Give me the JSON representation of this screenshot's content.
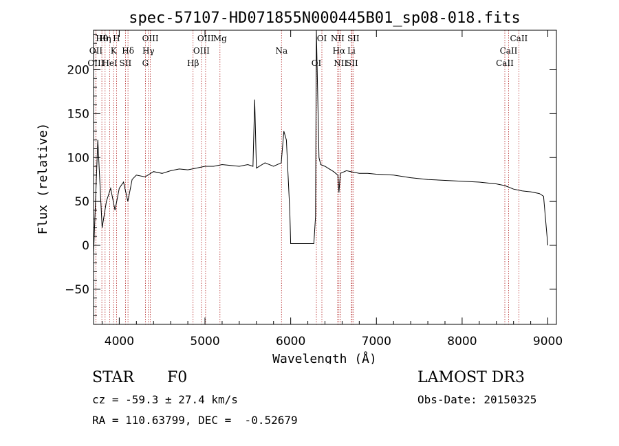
{
  "chart_data": {
    "type": "line",
    "title": "spec-57107-HD071855N000445B01_sp08-018.fits",
    "xlabel": "Wavelength (Å)",
    "ylabel": "Flux (relative)",
    "xlim": [
      3700,
      9100
    ],
    "ylim": [
      -90,
      245
    ],
    "xticks": [
      4000,
      5000,
      6000,
      7000,
      8000,
      9000
    ],
    "yticks": [
      -50,
      0,
      50,
      100,
      150,
      200
    ],
    "grid": false,
    "series": [
      {
        "name": "spectrum",
        "x": [
          3700,
          3750,
          3800,
          3850,
          3900,
          3950,
          4000,
          4050,
          4100,
          4150,
          4200,
          4300,
          4400,
          4500,
          4600,
          4700,
          4800,
          4900,
          5000,
          5100,
          5200,
          5300,
          5400,
          5500,
          5560,
          5580,
          5600,
          5700,
          5800,
          5890,
          5920,
          5950,
          5990,
          6000,
          6100,
          6200,
          6250,
          6270,
          6290,
          6300,
          6330,
          6350,
          6400,
          6500,
          6550,
          6563,
          6580,
          6650,
          6700,
          6800,
          6900,
          7000,
          7200,
          7400,
          7600,
          7800,
          8000,
          8200,
          8400,
          8500,
          8600,
          8700,
          8800,
          8900,
          8950,
          9000
        ],
        "y": [
          -10,
          120,
          20,
          50,
          65,
          40,
          65,
          72,
          50,
          75,
          80,
          78,
          84,
          82,
          85,
          87,
          86,
          88,
          90,
          90,
          92,
          91,
          90,
          92,
          90,
          166,
          88,
          94,
          90,
          94,
          130,
          120,
          38,
          2,
          2,
          2,
          2,
          2,
          33,
          245,
          100,
          92,
          90,
          84,
          80,
          60,
          82,
          85,
          84,
          82,
          82,
          81,
          80,
          77,
          75,
          74,
          73,
          72,
          70,
          68,
          64,
          62,
          61,
          59,
          56,
          0
        ]
      }
    ],
    "line_markers": [
      {
        "label": "Hθ",
        "wavelength": 3797
      },
      {
        "label": "OII",
        "wavelength": 3727
      },
      {
        "label": "OIII",
        "wavelength": 3727
      },
      {
        "label": "Hη",
        "wavelength": 3835
      },
      {
        "label": "K",
        "wavelength": 3934
      },
      {
        "label": "HeI",
        "wavelength": 3889
      },
      {
        "label": "H",
        "wavelength": 3968
      },
      {
        "label": "Hδ",
        "wavelength": 4102
      },
      {
        "label": "SII",
        "wavelength": 4072
      },
      {
        "label": "OIII",
        "wavelength": 4363
      },
      {
        "label": "Hγ",
        "wavelength": 4340
      },
      {
        "label": "G",
        "wavelength": 4305
      },
      {
        "label": "OIII",
        "wavelength": 5007
      },
      {
        "label": "OIII",
        "wavelength": 4959
      },
      {
        "label": "Hβ",
        "wavelength": 4861
      },
      {
        "label": "Mg",
        "wavelength": 5175
      },
      {
        "label": "Na",
        "wavelength": 5893
      },
      {
        "label": "OI",
        "wavelength": 6300
      },
      {
        "label": "OI",
        "wavelength": 6364
      },
      {
        "label": "Hα",
        "wavelength": 6563
      },
      {
        "label": "SII",
        "wavelength": 6716
      },
      {
        "label": "NII",
        "wavelength": 6548
      },
      {
        "label": "Li",
        "wavelength": 6708
      },
      {
        "label": "NII",
        "wavelength": 6583
      },
      {
        "label": "SII",
        "wavelength": 6731
      },
      {
        "label": "CaII",
        "wavelength": 8542
      },
      {
        "label": "CaII",
        "wavelength": 8498
      },
      {
        "label": "CaII",
        "wavelength": 8662
      }
    ]
  },
  "footer": {
    "class_label": "STAR",
    "subclass": "F0",
    "survey": "LAMOST DR3",
    "cz": "cz = -59.3 ± 27.4 km/s",
    "obs_date": "Obs-Date: 20150325",
    "radec": "RA = 110.63799, DEC =  -0.52679"
  },
  "colors": {
    "spectrum": "#000000",
    "marker_line": "#b22222",
    "axes": "#000000"
  }
}
